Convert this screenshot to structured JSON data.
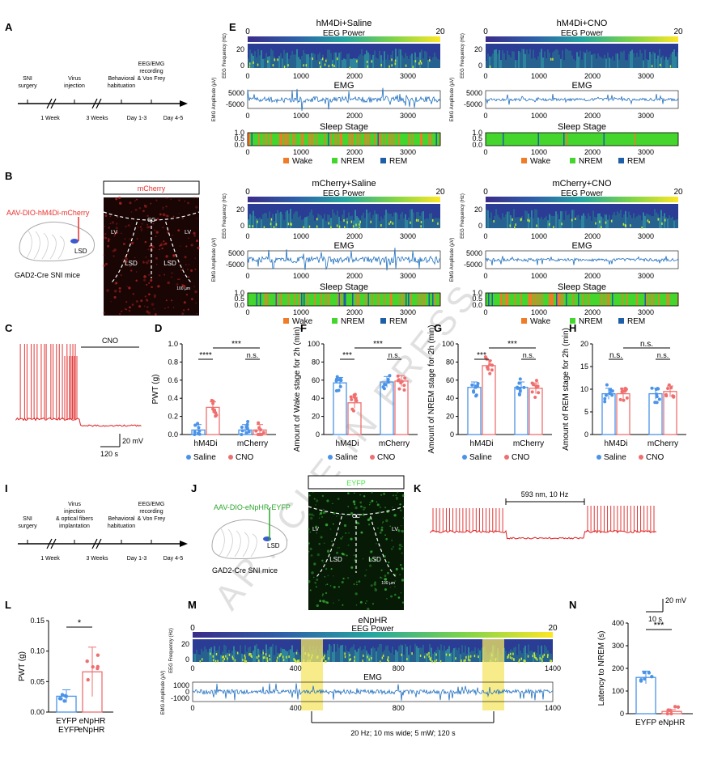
{
  "panels": {
    "A": "A",
    "B": "B",
    "C": "C",
    "D": "D",
    "E": "E",
    "F": "F",
    "G": "G",
    "H": "H",
    "I": "I",
    "J": "J",
    "K": "K",
    "L": "L",
    "M": "M",
    "N": "N"
  },
  "timelineA": {
    "steps": [
      "SNI",
      "surgery",
      "Virus",
      "injection",
      "Behavioral",
      "habituation",
      "EEG/EMG",
      "recording",
      "& Von Frey"
    ],
    "intervals": [
      "1 Week",
      "3 Weeks",
      "Day 1-3",
      "Day 4-5"
    ]
  },
  "timelineI": {
    "steps": [
      "SNI",
      "surgery",
      "Virus",
      "injection",
      "& optical fibers",
      "implantation",
      "Behavioral",
      "habituation",
      "EEG/EMG",
      "recording",
      "& Von Frey"
    ],
    "intervals": [
      "1 Week",
      "3 Weeks",
      "Day 1-3",
      "Day 4-5"
    ]
  },
  "panelB": {
    "virus": "AAV-DIO-hM4Di-mCherry",
    "mouse": "GAD2-Cre SNI mice",
    "lsd": "LSD",
    "header": "mCherry",
    "regions": [
      "CC",
      "LV",
      "LV",
      "LSD",
      "LSD"
    ],
    "scale": "100 µm"
  },
  "panelJ": {
    "virus": "AAV-DIO-eNpHR-EYFP",
    "mouse": "GAD2-Cre SNI mice",
    "lsd": "LSD",
    "header": "EYFP",
    "regions": [
      "CC",
      "LV",
      "LV",
      "LSD",
      "LSD"
    ],
    "scale": "100 µm"
  },
  "panelC": {
    "label": "CNO",
    "scale_v": "20 mV",
    "scale_t": "120 s"
  },
  "panelK": {
    "label": "593 nm, 10 Hz",
    "scale_v": "20 mV",
    "scale_t": "10 s"
  },
  "panelE": {
    "titles": [
      "hM4Di+Saline",
      "hM4Di+CNO",
      "mCherry+Saline",
      "mCherry+CNO"
    ],
    "eeg": "EEG Power",
    "emg": "EMG",
    "stage": "Sleep Stage",
    "eeg_ylabel": "EEG Frequency (Hz)",
    "emg_ylabel": "EMG Amplitude (µV)",
    "cbar": [
      "0",
      "20"
    ],
    "xticks": [
      "0",
      "1000",
      "2000",
      "3000"
    ],
    "eeg_yticks": [
      "20",
      "0"
    ],
    "emg_yticks": [
      "5000",
      "-5000"
    ],
    "stage_yticks": [
      "1.0",
      "0.5",
      "0.0"
    ],
    "legend": [
      "Wake",
      "NREM",
      "REM"
    ],
    "colors": {
      "wake": "#f07c28",
      "nrem": "#44d62c",
      "rem": "#1f5fa8"
    }
  },
  "legend_groups": {
    "saline": "Saline",
    "cno": "CNO",
    "eyfp": "EYFP",
    "enphr": "eNpHR"
  },
  "chart_data": [
    {
      "type": "bar",
      "panel": "D",
      "ylabel": "PWT (g)",
      "ylim": [
        0,
        1.0
      ],
      "yticks": [
        "0.0",
        "0.2",
        "0.4",
        "0.6",
        "0.8",
        "1.0"
      ],
      "categories": [
        "hM4Di",
        "mCherry"
      ],
      "series": [
        {
          "name": "Saline",
          "values": [
            0.05,
            0.05
          ]
        },
        {
          "name": "CNO",
          "values": [
            0.3,
            0.05
          ]
        }
      ],
      "annotations": [
        "****",
        "***",
        "n.s."
      ]
    },
    {
      "type": "bar",
      "panel": "F",
      "ylabel": "Amount of Wake stage for 2h (min)",
      "ylim": [
        0,
        100
      ],
      "yticks": [
        "0",
        "20",
        "40",
        "60",
        "80",
        "100"
      ],
      "categories": [
        "hM4Di",
        "mCherry"
      ],
      "series": [
        {
          "name": "Saline",
          "values": [
            57,
            58
          ]
        },
        {
          "name": "CNO",
          "values": [
            35,
            59
          ]
        }
      ],
      "annotations": [
        "***",
        "***",
        "n.s."
      ]
    },
    {
      "type": "bar",
      "panel": "G",
      "ylabel": "Amount of NREM stage for 2h (min)",
      "ylim": [
        0,
        100
      ],
      "yticks": [
        "0",
        "20",
        "40",
        "60",
        "80",
        "100"
      ],
      "categories": [
        "hM4Di",
        "mCherry"
      ],
      "series": [
        {
          "name": "Saline",
          "values": [
            52,
            52
          ]
        },
        {
          "name": "CNO",
          "values": [
            76,
            51
          ]
        }
      ],
      "annotations": [
        "***",
        "***",
        "n.s."
      ]
    },
    {
      "type": "bar",
      "panel": "H",
      "ylabel": "Amount of REM stage for 2h (min)",
      "ylim": [
        0,
        20
      ],
      "yticks": [
        "0",
        "5",
        "10",
        "15",
        "20"
      ],
      "categories": [
        "hM4Di",
        "mCherry"
      ],
      "series": [
        {
          "name": "Saline",
          "values": [
            9,
            9
          ]
        },
        {
          "name": "CNO",
          "values": [
            9,
            9.5
          ]
        }
      ],
      "annotations": [
        "n.s.",
        "n.s.",
        "n.s."
      ]
    },
    {
      "type": "bar",
      "panel": "L",
      "ylabel": "PWT (g)",
      "ylim": [
        0,
        0.15
      ],
      "yticks": [
        "0.00",
        "0.05",
        "0.10",
        "0.15"
      ],
      "categories": [
        "EYFP",
        "eNpHR"
      ],
      "values": [
        0.026,
        0.066
      ],
      "annotations": [
        "*"
      ]
    },
    {
      "type": "bar",
      "panel": "N",
      "ylabel": "Latency to NREM (s)",
      "ylim": [
        0,
        400
      ],
      "yticks": [
        "0",
        "100",
        "200",
        "300",
        "400"
      ],
      "categories": [
        "EYFP",
        "eNpHR"
      ],
      "values": [
        160,
        10
      ],
      "annotations": [
        "***"
      ]
    }
  ],
  "panelM": {
    "title": "eNpHR",
    "eeg": "EEG Power",
    "emg": "EMG",
    "cbar": [
      "0",
      "20"
    ],
    "xticks": [
      "0",
      "400",
      "800",
      "1400"
    ],
    "eeg_yticks": [
      "20",
      "0"
    ],
    "emg_yticks": [
      "1000",
      "0",
      "-1000"
    ],
    "eeg_ylabel": "EEG Frequency (Hz)",
    "emg_ylabel": "EMG Amplitude (µV)",
    "stim": "20 Hz; 10 ms wide; 5 mW; 120 s"
  },
  "watermark": "ARTICLE IN PRESS"
}
